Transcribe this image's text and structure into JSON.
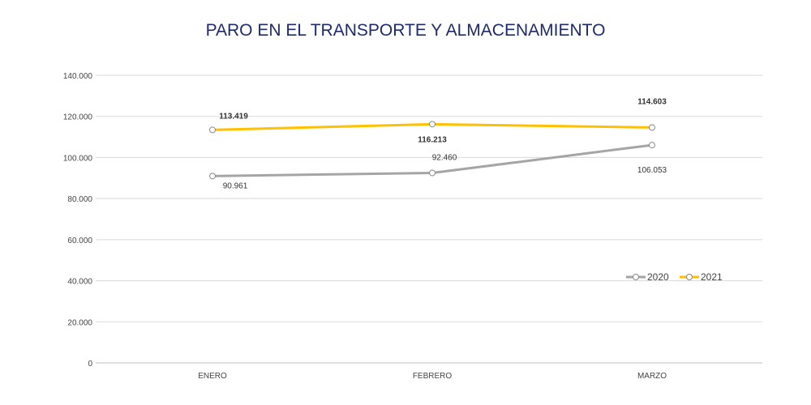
{
  "chart_data": {
    "type": "line",
    "title": "PARO EN EL TRANSPORTE Y ALMACENAMIENTO",
    "categories": [
      "ENERO",
      "FEBRERO",
      "MARZO"
    ],
    "series": [
      {
        "name": "2020",
        "values": [
          90961,
          92460,
          106053
        ],
        "labels": [
          "90.961",
          "92.460",
          "106.053"
        ],
        "color": "#a5a5a5"
      },
      {
        "name": "2021",
        "values": [
          113419,
          116213,
          114603
        ],
        "labels": [
          "113.419",
          "116.213",
          "114.603"
        ],
        "color": "#ffc000"
      }
    ],
    "ylim": [
      0,
      140000
    ],
    "yticks": [
      0,
      20000,
      40000,
      60000,
      80000,
      100000,
      120000,
      140000
    ],
    "ytick_labels": [
      "0",
      "20.000",
      "40.000",
      "60.000",
      "80.000",
      "100.000",
      "120.000",
      "140.000"
    ],
    "grid": true,
    "legend": "right",
    "xlabel": "",
    "ylabel": ""
  }
}
